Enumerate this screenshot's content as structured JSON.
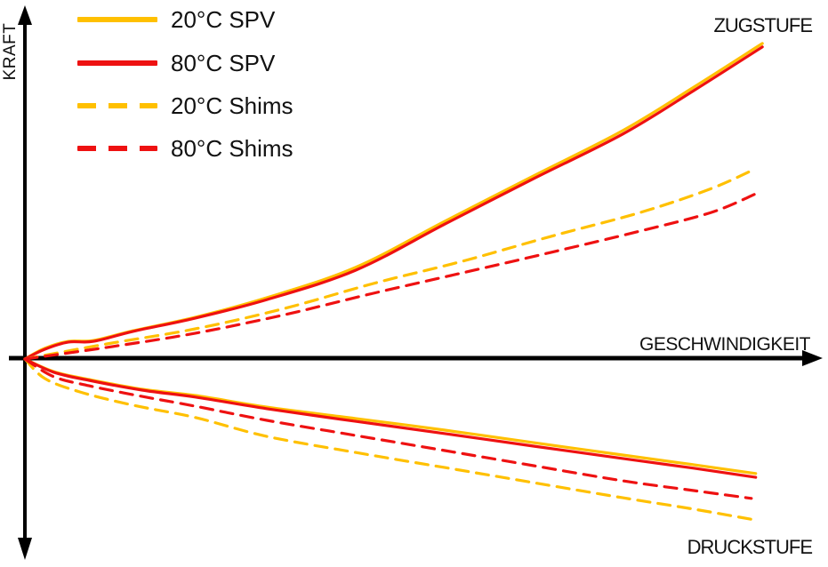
{
  "axes": {
    "x_label": "GESCHWINDIGKEIT",
    "y_label": "KRAFT",
    "axis_color": "#000000"
  },
  "annotations": {
    "top_right": "ZUGSTUFE",
    "bottom_right": "DRUCKSTUFE"
  },
  "colors": {
    "gold": "#FFC000",
    "red": "#EE1111",
    "text": "#111111"
  },
  "legend": {
    "items": [
      {
        "label": "20°C SPV",
        "color": "#FFC000",
        "style": "solid"
      },
      {
        "label": "80°C SPV",
        "color": "#EE1111",
        "style": "solid"
      },
      {
        "label": "20°C Shims",
        "color": "#FFC000",
        "style": "dashed"
      },
      {
        "label": "80°C Shims",
        "color": "#EE1111",
        "style": "dashed"
      }
    ]
  },
  "chart_data": {
    "type": "line",
    "title": "",
    "xlabel": "GESCHWINDIGKEIT",
    "ylabel": "KRAFT",
    "grid": false,
    "legend_position": "top-left",
    "x_axis": {
      "label": "GESCHWINDIGKEIT",
      "range": [
        -0.337,
        10.879
      ],
      "unit": "arbitrary velocity units"
    },
    "y_axis": {
      "label": "KRAFT",
      "range": [
        -0.661,
        1.141
      ],
      "unit": "normalized force (rebound positive, compression negative)"
    },
    "branches": {
      "positive": "ZUGSTUFE (rebound)",
      "negative": "DRUCKSTUFE (compression)"
    },
    "series": [
      {
        "name": "20°C SPV",
        "color": "#FFC000",
        "line_style": "solid",
        "zugstufe": [
          [
            0,
            0
          ],
          [
            0.27,
            0.034
          ],
          [
            0.59,
            0.056
          ],
          [
            0.93,
            0.059
          ],
          [
            1.47,
            0.09
          ],
          [
            2.31,
            0.133
          ],
          [
            3.28,
            0.195
          ],
          [
            4.48,
            0.291
          ],
          [
            5.69,
            0.438
          ],
          [
            6.89,
            0.582
          ],
          [
            8.1,
            0.726
          ],
          [
            9.06,
            0.864
          ],
          [
            9.99,
            1.003
          ]
        ],
        "druckstufe": [
          [
            0,
            0
          ],
          [
            0.39,
            -0.04
          ],
          [
            0.87,
            -0.065
          ],
          [
            1.59,
            -0.096
          ],
          [
            2.31,
            -0.116
          ],
          [
            3.28,
            -0.153
          ],
          [
            4.48,
            -0.189
          ],
          [
            5.69,
            -0.226
          ],
          [
            6.89,
            -0.266
          ],
          [
            8.1,
            -0.305
          ],
          [
            9.06,
            -0.336
          ],
          [
            9.9,
            -0.364
          ]
        ]
      },
      {
        "name": "80°C SPV",
        "color": "#EE1111",
        "line_style": "solid",
        "zugstufe": [
          [
            0,
            0
          ],
          [
            0.27,
            0.031
          ],
          [
            0.59,
            0.054
          ],
          [
            0.93,
            0.056
          ],
          [
            1.47,
            0.088
          ],
          [
            2.31,
            0.13
          ],
          [
            3.28,
            0.189
          ],
          [
            4.48,
            0.282
          ],
          [
            5.69,
            0.429
          ],
          [
            6.89,
            0.573
          ],
          [
            8.1,
            0.715
          ],
          [
            9.06,
            0.853
          ],
          [
            9.99,
            0.992
          ]
        ],
        "druckstufe": [
          [
            0,
            0
          ],
          [
            0.39,
            -0.042
          ],
          [
            0.87,
            -0.068
          ],
          [
            1.59,
            -0.099
          ],
          [
            2.31,
            -0.121
          ],
          [
            3.28,
            -0.158
          ],
          [
            4.48,
            -0.198
          ],
          [
            5.69,
            -0.237
          ],
          [
            6.89,
            -0.277
          ],
          [
            8.1,
            -0.316
          ],
          [
            9.06,
            -0.347
          ],
          [
            9.9,
            -0.376
          ]
        ]
      },
      {
        "name": "20°C Shims",
        "color": "#FFC000",
        "line_style": "dashed",
        "zugstufe": [
          [
            0,
            0
          ],
          [
            1.11,
            0.048
          ],
          [
            2.31,
            0.096
          ],
          [
            3.52,
            0.161
          ],
          [
            4.72,
            0.24
          ],
          [
            5.93,
            0.311
          ],
          [
            7.13,
            0.39
          ],
          [
            8.34,
            0.466
          ],
          [
            9.3,
            0.542
          ],
          [
            9.9,
            0.605
          ]
        ],
        "druckstufe": [
          [
            0,
            0
          ],
          [
            0.27,
            -0.062
          ],
          [
            0.75,
            -0.105
          ],
          [
            1.47,
            -0.147
          ],
          [
            2.31,
            -0.186
          ],
          [
            3.28,
            -0.246
          ],
          [
            4.48,
            -0.297
          ],
          [
            5.69,
            -0.345
          ],
          [
            6.89,
            -0.393
          ],
          [
            8.1,
            -0.441
          ],
          [
            9.06,
            -0.477
          ],
          [
            9.88,
            -0.511
          ]
        ]
      },
      {
        "name": "80°C Shims",
        "color": "#EE1111",
        "line_style": "dashed",
        "zugstufe": [
          [
            0,
            0
          ],
          [
            1.11,
            0.037
          ],
          [
            2.31,
            0.082
          ],
          [
            3.52,
            0.141
          ],
          [
            4.72,
            0.209
          ],
          [
            5.93,
            0.274
          ],
          [
            7.13,
            0.339
          ],
          [
            8.34,
            0.407
          ],
          [
            9.3,
            0.466
          ],
          [
            9.9,
            0.525
          ]
        ],
        "druckstufe": [
          [
            0,
            0
          ],
          [
            0.39,
            -0.056
          ],
          [
            0.87,
            -0.085
          ],
          [
            1.59,
            -0.119
          ],
          [
            2.31,
            -0.15
          ],
          [
            3.28,
            -0.195
          ],
          [
            4.48,
            -0.243
          ],
          [
            5.69,
            -0.291
          ],
          [
            6.89,
            -0.339
          ],
          [
            8.1,
            -0.387
          ],
          [
            9.06,
            -0.418
          ],
          [
            9.84,
            -0.443
          ]
        ]
      }
    ]
  }
}
